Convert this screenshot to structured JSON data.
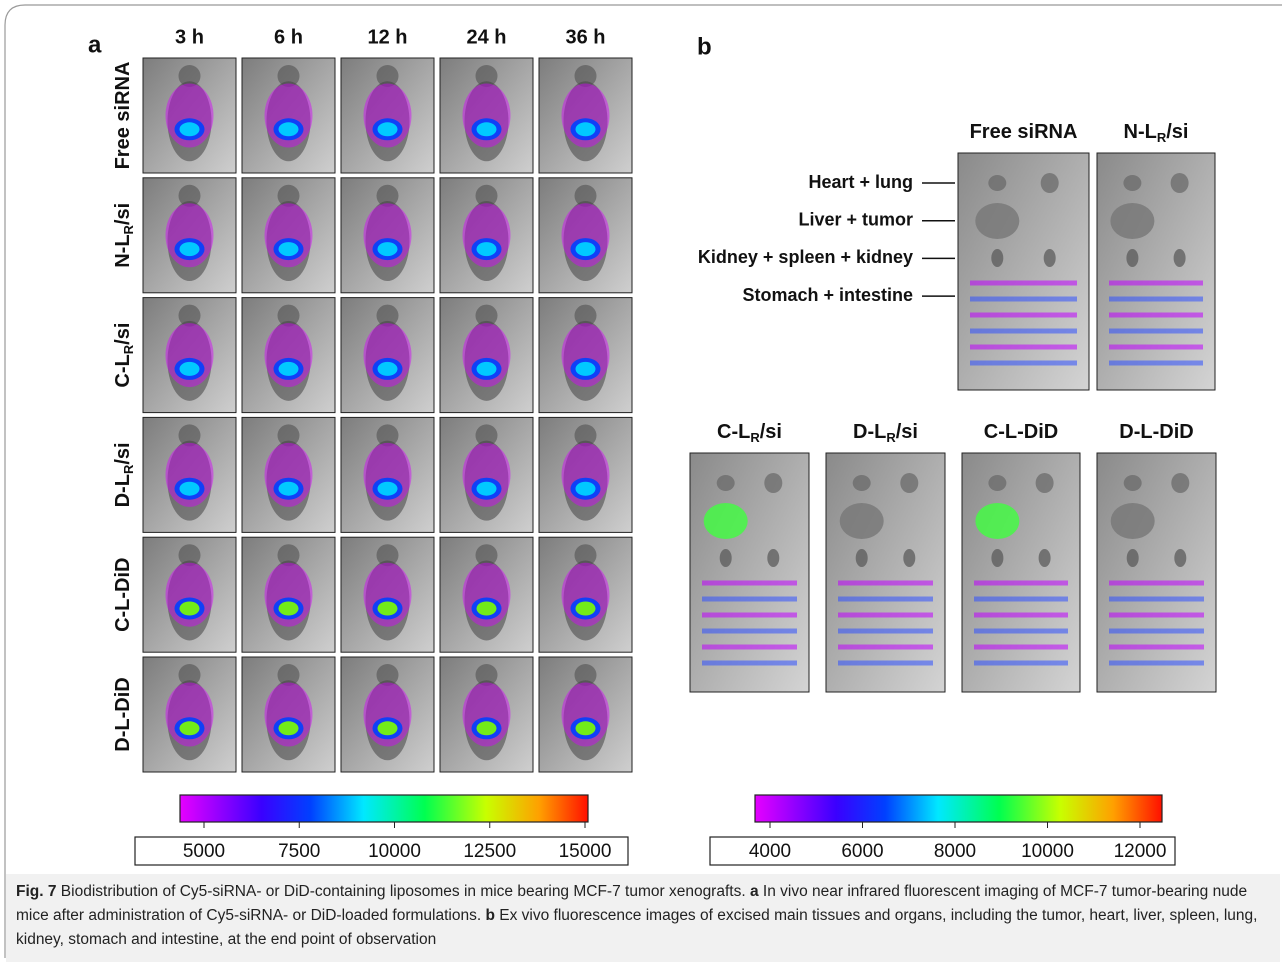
{
  "panel_a": {
    "label": "a",
    "timepoints": [
      "3 h",
      "6 h",
      "12 h",
      "24 h",
      "36 h"
    ],
    "groups": [
      {
        "text": "Free siRNA"
      },
      {
        "text": "N-L",
        "sub": "R",
        "tail": "/si"
      },
      {
        "text": "C-L",
        "sub": "R",
        "tail": "/si"
      },
      {
        "text": "D-L",
        "sub": "R",
        "tail": "/si"
      },
      {
        "text": "C-L-DiD"
      },
      {
        "text": "D-L-DiD"
      }
    ]
  },
  "panel_b": {
    "label": "b",
    "organs": [
      "Heart + lung",
      "Liver + tumor",
      "Kidney + spleen + kidney",
      "Stomach + intestine"
    ],
    "groups": [
      {
        "text": "Free siRNA"
      },
      {
        "text": "N-L",
        "sub": "R",
        "tail": "/si"
      },
      {
        "text": "C-L",
        "sub": "R",
        "tail": "/si"
      },
      {
        "text": "D-L",
        "sub": "R",
        "tail": "/si"
      },
      {
        "text": "C-L-DiD"
      },
      {
        "text": "D-L-DiD"
      }
    ]
  },
  "colorbars": [
    {
      "range": [
        5000,
        15000
      ],
      "ticks": [
        5000,
        7500,
        10000,
        12500,
        15000
      ]
    },
    {
      "range": [
        4000,
        12000
      ],
      "ticks": [
        4000,
        6000,
        8000,
        10000,
        12000
      ]
    }
  ],
  "caption": {
    "figure": "Fig. 7",
    "title": "Biodistribution of Cy5-siRNA- or DiD-containing liposomes in mice bearing MCF-7 tumor xenografts.",
    "parts": [
      {
        "label": "a",
        "text": "In vivo near infrared fluorescent imaging of MCF-7 tumor-bearing nude mice after administration of Cy5-siRNA- or DiD-loaded formulations."
      },
      {
        "label": "b",
        "text": "Ex vivo fluorescence images of excised main tissues and organs, including the tumor, heart, liver, spleen, lung, kidney, stomach and intestine, at the end point of observation"
      }
    ]
  }
}
